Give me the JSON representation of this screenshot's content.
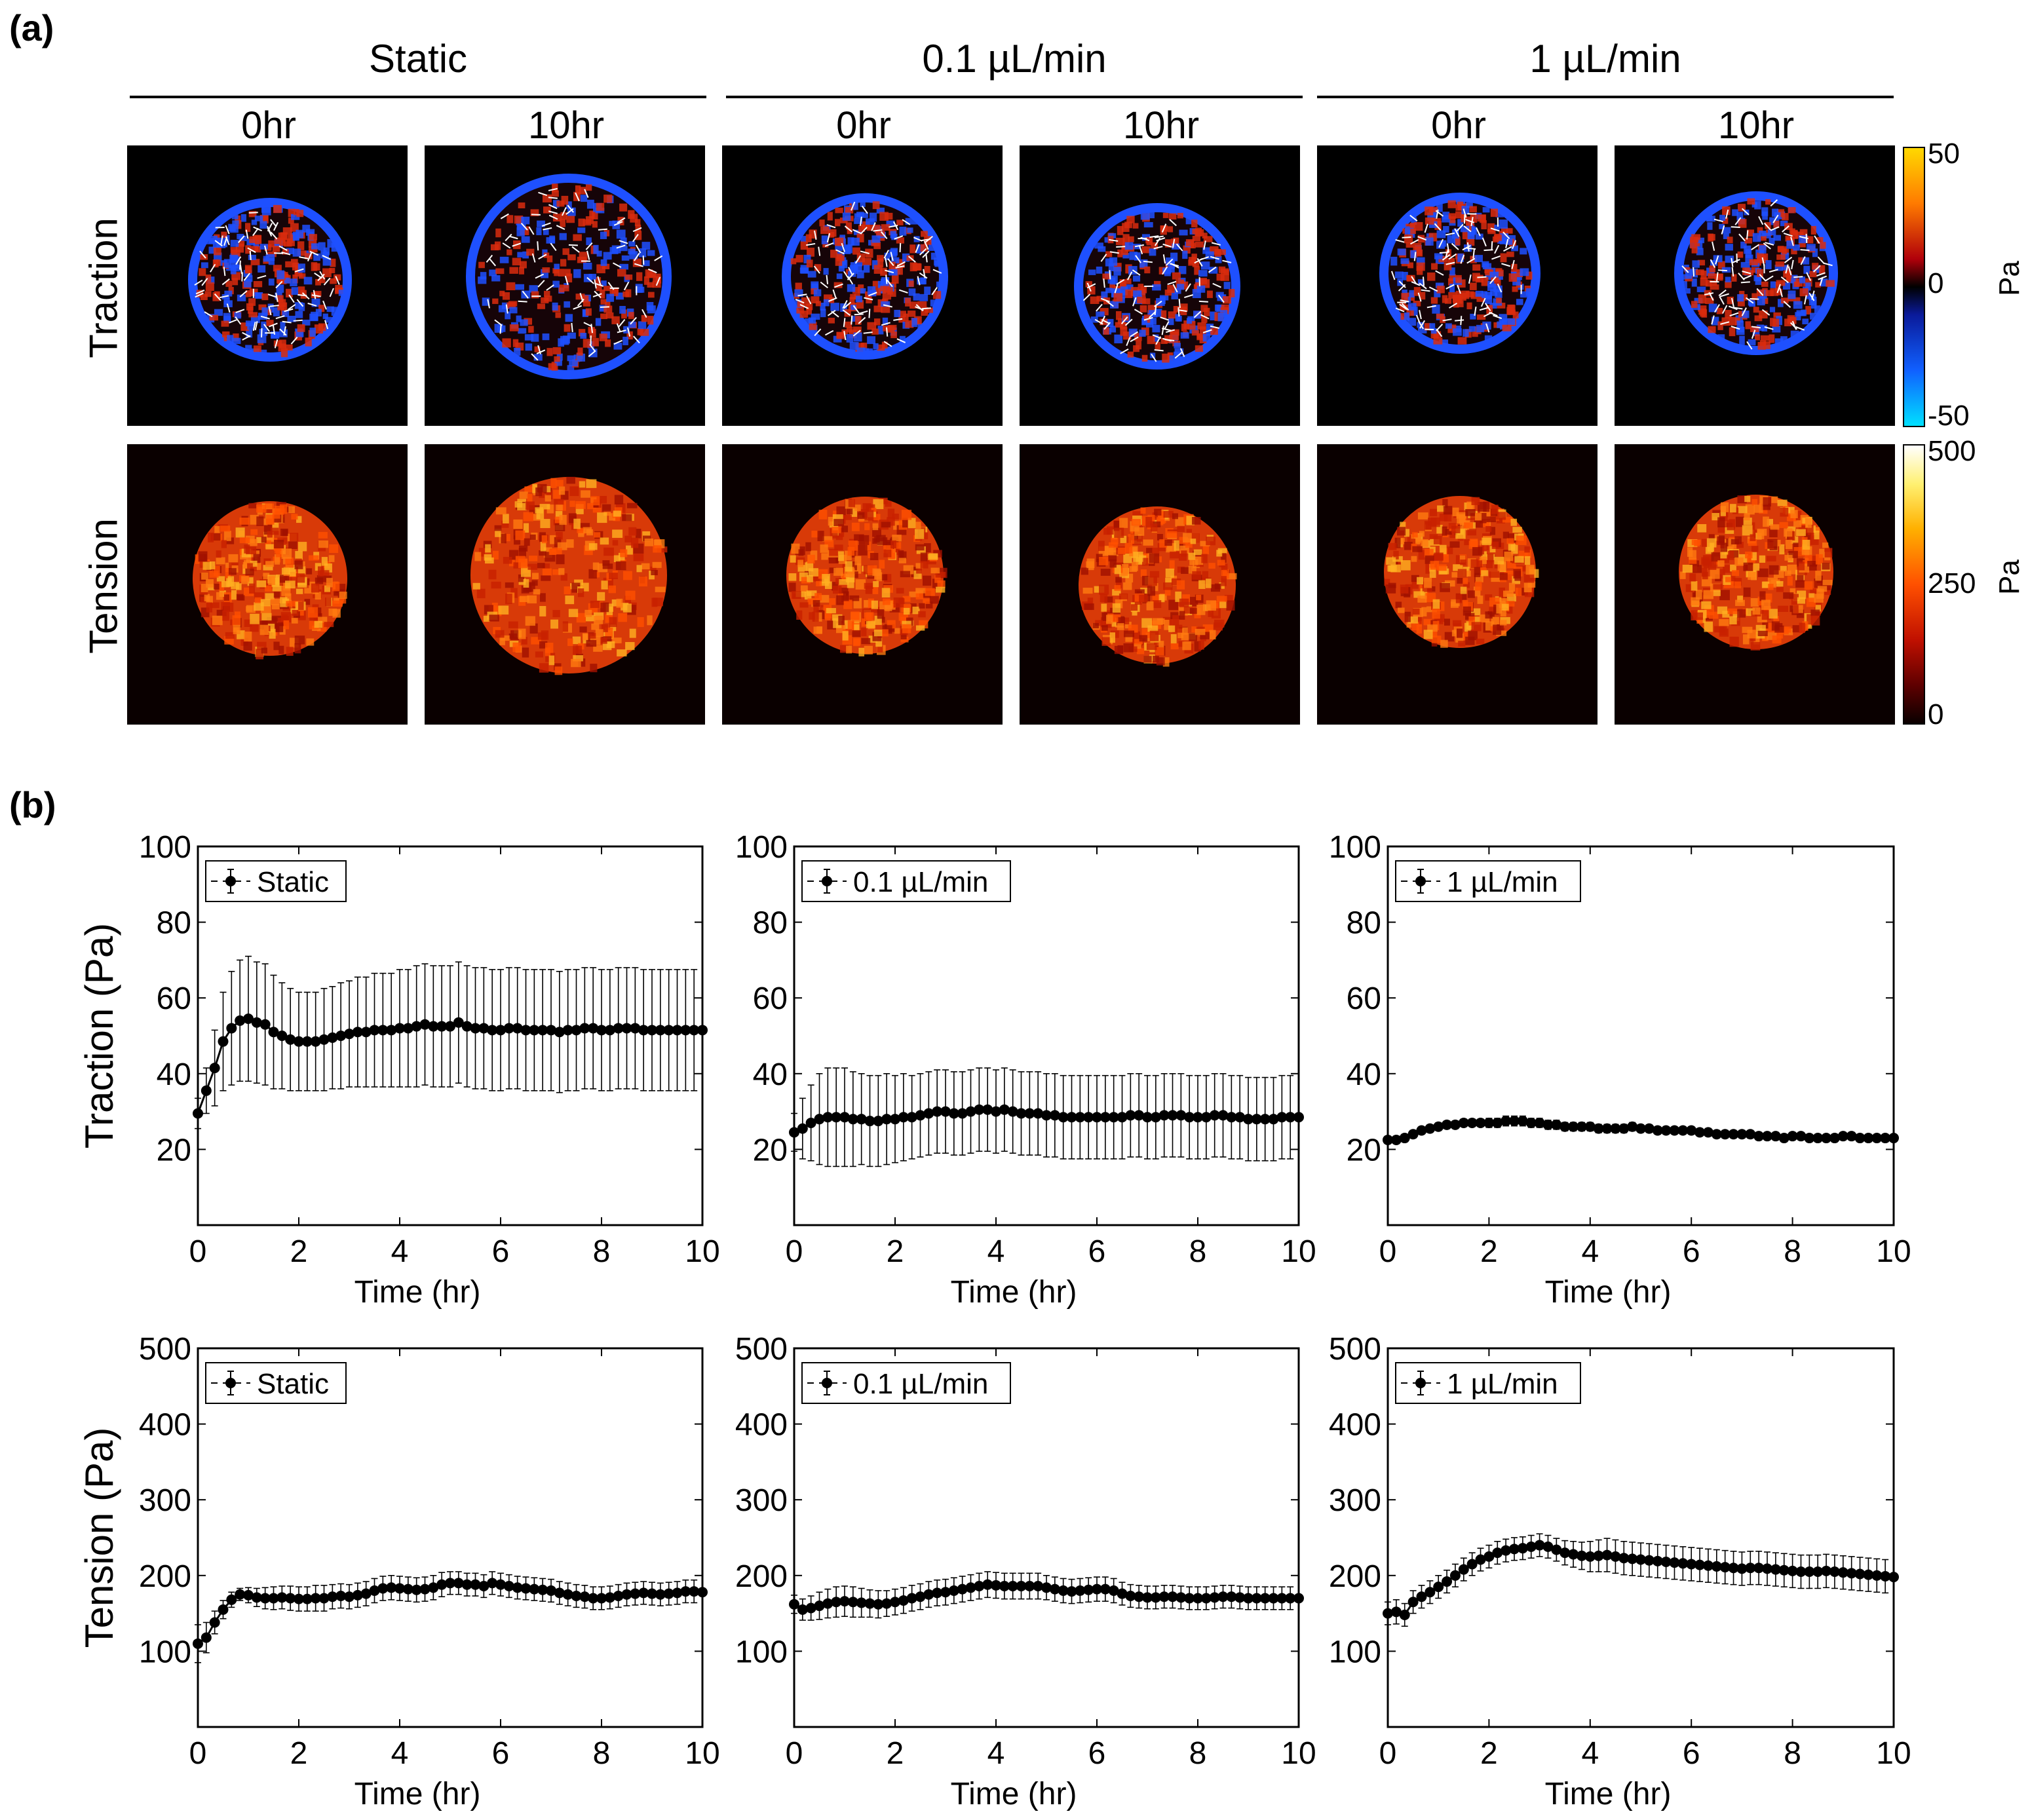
{
  "panel_labels": {
    "a": "(a)",
    "b": "(b)"
  },
  "panel_a": {
    "groups": [
      "Static",
      "0.1 µL/min",
      "1 µL/min"
    ],
    "times": [
      "0hr",
      "10hr",
      "0hr",
      "10hr",
      "0hr",
      "10hr"
    ],
    "rows": [
      "Traction",
      "Tension"
    ],
    "traction_colorbar": {
      "max": "50",
      "mid": "0",
      "min": "-50",
      "unit": "Pa"
    },
    "tension_colorbar": {
      "max": "500",
      "mid": "250",
      "min": "0",
      "unit": "Pa"
    },
    "colors": {
      "traction_hot": "#d92b0e",
      "traction_cold": "#1e50ff",
      "tension_hot": "#ff7a10"
    }
  },
  "chart_data": [
    {
      "type": "line",
      "title": "",
      "xlabel": "Time (hr)",
      "ylabel": "Traction (Pa)",
      "xlim": [
        0,
        10
      ],
      "ylim": [
        0,
        100
      ],
      "xticks": [
        0,
        2,
        4,
        6,
        8,
        10
      ],
      "yticks": [
        20,
        40,
        60,
        80,
        100
      ],
      "legend": {
        "label": "Static",
        "placement": "top-left"
      },
      "x_start": 0,
      "x_step": 0.16667,
      "values": [
        29.5,
        35.5,
        41.5,
        48.5,
        52,
        54,
        54.5,
        53.5,
        53,
        51,
        50,
        49,
        48.5,
        48.5,
        48.5,
        49,
        49.5,
        50,
        50.5,
        51,
        51,
        51.5,
        51.5,
        51.5,
        52,
        52,
        52.5,
        53,
        52.5,
        52.5,
        52.5,
        53.5,
        52.5,
        52,
        52,
        51.5,
        51.5,
        52,
        52,
        51.5,
        51.5,
        51.5,
        51.5,
        51,
        51.5,
        51.5,
        52,
        52,
        51.5,
        51.5,
        52,
        52,
        52,
        51.5,
        51.5,
        51.5,
        51.5,
        51.5,
        51.5,
        51.5,
        51.5
      ],
      "errors": [
        4,
        6,
        10,
        13,
        15,
        16,
        16.5,
        16,
        16,
        15,
        14,
        13.5,
        13,
        13,
        13,
        13.5,
        13.5,
        14,
        14,
        14.5,
        14.5,
        15,
        15,
        15,
        15.5,
        15.5,
        16,
        16,
        16,
        16,
        16,
        16,
        16,
        16,
        16,
        16,
        16,
        16,
        16,
        16,
        16,
        16,
        16,
        16,
        16,
        16,
        16,
        16,
        16,
        16,
        16,
        16,
        16,
        16,
        16,
        16,
        16,
        16,
        16,
        16,
        16
      ]
    },
    {
      "type": "line",
      "title": "",
      "xlabel": "Time (hr)",
      "ylabel": "",
      "xlim": [
        0,
        10
      ],
      "ylim": [
        0,
        100
      ],
      "xticks": [
        0,
        2,
        4,
        6,
        8,
        10
      ],
      "yticks": [
        20,
        40,
        60,
        80,
        100
      ],
      "legend": {
        "label": "0.1 µL/min",
        "placement": "top-left"
      },
      "x_start": 0,
      "x_step": 0.16667,
      "values": [
        24.5,
        25.5,
        27,
        28,
        28.5,
        28.5,
        28.5,
        28,
        28,
        27.5,
        27.5,
        28,
        28,
        28.5,
        28.5,
        29,
        29.5,
        30,
        30,
        29.5,
        29.5,
        30,
        30.5,
        30.5,
        30,
        30.5,
        30,
        29.5,
        29.5,
        29.5,
        29,
        29,
        28.5,
        28.5,
        28.5,
        28.5,
        28.5,
        28.5,
        28.5,
        28.5,
        29,
        29,
        28.5,
        28.5,
        29,
        29,
        29,
        28.5,
        28.5,
        28.5,
        29,
        29,
        28.5,
        28.5,
        28,
        28,
        28,
        28,
        28.5,
        28.5,
        28.5
      ],
      "errors": [
        5,
        8,
        10,
        12,
        13,
        13,
        13,
        12.5,
        12,
        12,
        12,
        12,
        11.5,
        11.5,
        11,
        11,
        11,
        11,
        11,
        11,
        11,
        11,
        11,
        11,
        11,
        11,
        11,
        11,
        11,
        11,
        11,
        11,
        11,
        11,
        11,
        11,
        11,
        11,
        11,
        11,
        11,
        11,
        11,
        11,
        11,
        11,
        11,
        11,
        11,
        11,
        11,
        11,
        11,
        11,
        11,
        11,
        11,
        11,
        11,
        11,
        11
      ]
    },
    {
      "type": "line",
      "title": "",
      "xlabel": "Time (hr)",
      "ylabel": "",
      "xlim": [
        0,
        10
      ],
      "ylim": [
        0,
        100
      ],
      "xticks": [
        0,
        2,
        4,
        6,
        8,
        10
      ],
      "yticks": [
        20,
        40,
        60,
        80,
        100
      ],
      "legend": {
        "label": "1 µL/min",
        "placement": "top-left"
      },
      "x_start": 0,
      "x_step": 0.16667,
      "values": [
        22.5,
        22.5,
        23,
        24,
        25,
        25.5,
        26,
        26.5,
        26.5,
        27,
        27,
        27,
        27,
        27,
        27.5,
        27.5,
        27.5,
        27,
        27,
        26.5,
        26.5,
        26,
        26,
        26,
        26,
        25.5,
        25.5,
        25.5,
        25.5,
        26,
        25.5,
        25.5,
        25,
        25,
        25,
        25,
        25,
        24.5,
        24.5,
        24,
        24,
        24,
        24,
        24,
        23.5,
        23.5,
        23.5,
        23,
        23.5,
        23.5,
        23,
        23,
        23,
        23,
        23.5,
        23.5,
        23,
        23,
        23,
        23,
        23
      ],
      "errors": [
        1,
        1,
        1,
        1,
        1,
        1,
        1,
        1,
        1,
        1,
        1,
        1,
        1.2,
        1.2,
        1.3,
        1.3,
        1.3,
        1.2,
        1.2,
        1.2,
        1.2,
        1.1,
        1.1,
        1.1,
        1.1,
        1.1,
        1.1,
        1.1,
        1.1,
        1.1,
        1,
        1,
        1,
        1,
        1,
        1,
        1,
        1,
        1,
        1,
        1,
        1,
        1,
        1,
        1,
        1,
        1,
        1,
        1,
        1,
        1,
        1,
        1,
        1,
        1,
        1,
        1,
        1,
        1,
        1,
        1
      ]
    },
    {
      "type": "line",
      "title": "",
      "xlabel": "Time (hr)",
      "ylabel": "Tension (Pa)",
      "xlim": [
        0,
        10
      ],
      "ylim": [
        0,
        500
      ],
      "xticks": [
        0,
        2,
        4,
        6,
        8,
        10
      ],
      "yticks": [
        100,
        200,
        300,
        400,
        500
      ],
      "legend": {
        "label": "Static",
        "placement": "top-left"
      },
      "x_start": 0,
      "x_step": 0.16667,
      "values": [
        110,
        118,
        138,
        155,
        168,
        175,
        174,
        171,
        170,
        170,
        171,
        170,
        169,
        169,
        170,
        170,
        172,
        173,
        172,
        174,
        176,
        180,
        183,
        184,
        183,
        182,
        181,
        182,
        184,
        188,
        190,
        190,
        188,
        188,
        186,
        190,
        188,
        186,
        184,
        183,
        182,
        181,
        180,
        177,
        175,
        173,
        172,
        170,
        170,
        171,
        173,
        175,
        176,
        177,
        176,
        175,
        176,
        177,
        179,
        179,
        178
      ],
      "errors": [
        25,
        20,
        15,
        12,
        10,
        8,
        10,
        12,
        14,
        15,
        15,
        16,
        16,
        16,
        17,
        17,
        16,
        16,
        16,
        16,
        16,
        16,
        16,
        16,
        16,
        16,
        16,
        16,
        16,
        16,
        15,
        15,
        15,
        15,
        15,
        15,
        15,
        15,
        15,
        15,
        15,
        15,
        15,
        15,
        15,
        15,
        15,
        15,
        15,
        15,
        15,
        15,
        15,
        15,
        15,
        15,
        15,
        15,
        15,
        15,
        15
      ]
    },
    {
      "type": "line",
      "title": "",
      "xlabel": "Time (hr)",
      "ylabel": "",
      "xlim": [
        0,
        10
      ],
      "ylim": [
        0,
        500
      ],
      "xticks": [
        0,
        2,
        4,
        6,
        8,
        10
      ],
      "yticks": [
        100,
        200,
        300,
        400,
        500
      ],
      "legend": {
        "label": "0.1 µL/min",
        "placement": "top-left"
      },
      "x_start": 0,
      "x_step": 0.16667,
      "values": [
        162,
        155,
        157,
        160,
        163,
        165,
        166,
        165,
        164,
        163,
        162,
        163,
        165,
        167,
        170,
        172,
        175,
        177,
        178,
        180,
        182,
        184,
        186,
        188,
        187,
        186,
        186,
        186,
        186,
        186,
        184,
        182,
        180,
        179,
        180,
        181,
        182,
        182,
        180,
        176,
        173,
        172,
        171,
        171,
        172,
        172,
        171,
        170,
        170,
        170,
        171,
        172,
        172,
        171,
        170,
        170,
        170,
        170,
        170,
        170,
        170
      ],
      "errors": [
        12,
        14,
        16,
        18,
        19,
        20,
        20,
        20,
        19,
        18,
        18,
        17,
        17,
        17,
        17,
        17,
        17,
        17,
        17,
        17,
        17,
        17,
        17,
        17,
        17,
        17,
        17,
        17,
        17,
        17,
        16,
        16,
        16,
        16,
        16,
        16,
        16,
        16,
        16,
        15,
        15,
        15,
        15,
        15,
        15,
        15,
        15,
        15,
        15,
        15,
        15,
        15,
        15,
        15,
        15,
        15,
        15,
        15,
        15,
        15,
        15
      ]
    },
    {
      "type": "line",
      "title": "",
      "xlabel": "Time (hr)",
      "ylabel": "",
      "xlim": [
        0,
        10
      ],
      "ylim": [
        0,
        500
      ],
      "xticks": [
        0,
        2,
        4,
        6,
        8,
        10
      ],
      "yticks": [
        100,
        200,
        300,
        400,
        500
      ],
      "legend": {
        "label": "1 µL/min",
        "placement": "top-left"
      },
      "x_start": 0,
      "x_step": 0.16667,
      "values": [
        150,
        152,
        148,
        165,
        172,
        178,
        185,
        192,
        200,
        208,
        215,
        221,
        225,
        230,
        233,
        235,
        236,
        238,
        240,
        238,
        234,
        230,
        228,
        226,
        225,
        226,
        227,
        225,
        223,
        222,
        221,
        220,
        219,
        218,
        217,
        216,
        215,
        214,
        213,
        212,
        211,
        210,
        209,
        210,
        210,
        209,
        208,
        207,
        206,
        205,
        205,
        205,
        206,
        205,
        204,
        203,
        202,
        201,
        200,
        199,
        198
      ],
      "errors": [
        15,
        16,
        15,
        15,
        15,
        15,
        15,
        15,
        15,
        15,
        15,
        15,
        15,
        15,
        15,
        15,
        15,
        15,
        15,
        15,
        15,
        16,
        17,
        18,
        20,
        21,
        22,
        22,
        22,
        22,
        22,
        22,
        22,
        22,
        22,
        22,
        22,
        22,
        22,
        22,
        22,
        22,
        22,
        22,
        22,
        22,
        22,
        22,
        22,
        22,
        22,
        22,
        22,
        22,
        22,
        22,
        22,
        22,
        22,
        22,
        22
      ]
    }
  ]
}
